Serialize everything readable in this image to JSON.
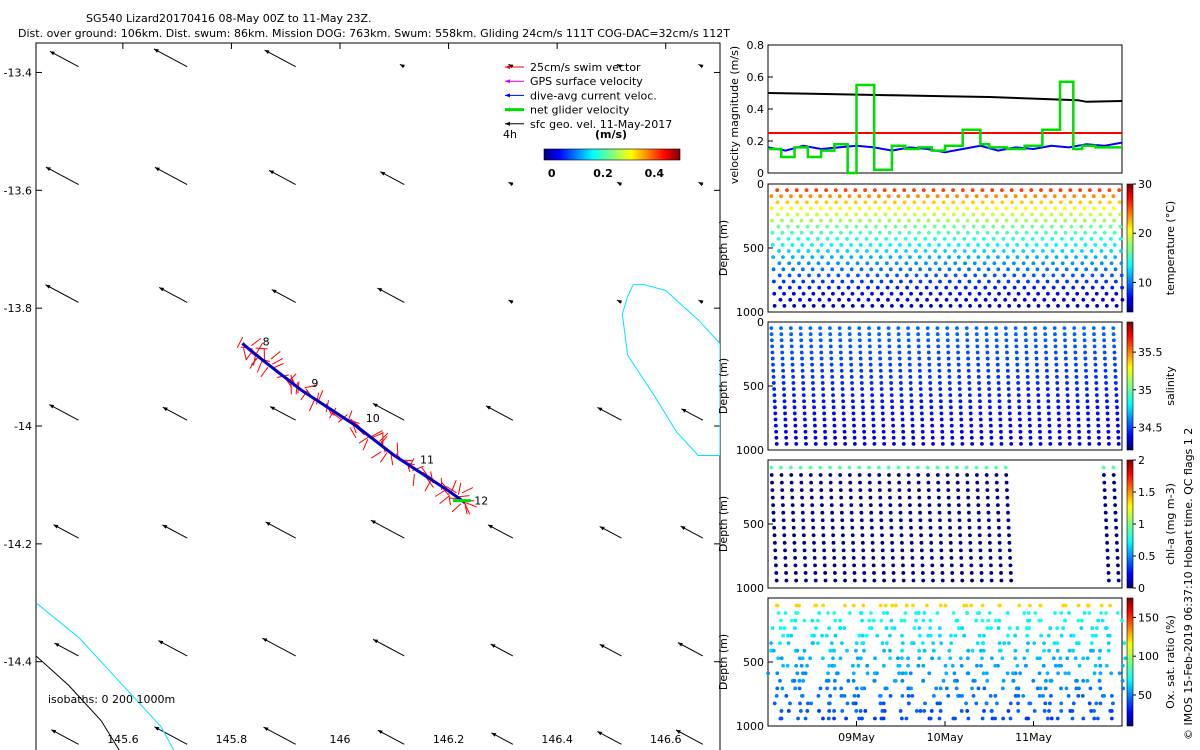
{
  "header": {
    "title": "SG540 Lizard20170416 08-May 00Z to 11-May 23Z.",
    "subtitle": "Dist. over ground: 106km. Dist. swum: 86km. Mission DOG: 763km. Swum: 558km. Gliding 24cm/s 111T COG-DAC=32cm/s 112T"
  },
  "side_note": "© IMOS 15-Feb-2019 06:37:10 Hobart time. QC flags 1  2",
  "colors": {
    "swim": "#ff0000",
    "gps": "#e000e0",
    "dac": "#0000ff",
    "net": "#00dd00",
    "sfc": "#000000",
    "coast": "#00e5ff",
    "isobath": "#000000",
    "track": "#0000cc"
  },
  "chart_data": [
    {
      "type": "scatter",
      "name": "map",
      "title": "SG540 Lizard20170416 08-May 00Z to 11-May 23Z.",
      "xlim": [
        145.44,
        146.7
      ],
      "ylim": [
        -14.56,
        -13.35
      ],
      "xticks": [
        145.6,
        145.8,
        146,
        146.2,
        146.4,
        146.6
      ],
      "xticklabels": [
        "145.6",
        "145.8",
        "146",
        "146.2",
        "146.4",
        "146.6"
      ],
      "yticks": [
        -13.4,
        -13.6,
        -13.8,
        -14,
        -14.2,
        -14.4
      ],
      "yticklabels": [
        "-13.4",
        "-13.6",
        "-13.8",
        "-14",
        "-14.2",
        "-14.4"
      ],
      "legend": [
        {
          "label": "25cm/s swim vector",
          "color": "#ff0000"
        },
        {
          "label": "GPS surface velocity",
          "color": "#e000e0"
        },
        {
          "label": "dive-avg current veloc.",
          "color": "#0000ff"
        },
        {
          "label": "net glider velocity",
          "color": "#00dd00"
        },
        {
          "label": "sfc geo. vel. 11-May-2017",
          "color": "#000000"
        }
      ],
      "legend_extra": "4h",
      "colorbar": {
        "label": "(m/s)",
        "ticks": [
          0,
          0.2,
          0.4
        ],
        "ticklabels": [
          "0",
          "0.2",
          "0.4"
        ],
        "range": [
          -0.03,
          0.5
        ]
      },
      "track": {
        "lon": [
          145.82,
          145.86,
          145.93,
          146.03,
          146.1,
          146.2,
          146.23
        ],
        "lat": [
          -13.86,
          -13.89,
          -13.94,
          -14.0,
          -14.05,
          -14.11,
          -14.13
        ]
      },
      "day_labels": [
        {
          "text": "8",
          "lon": 145.85,
          "lat": -13.86
        },
        {
          "text": "9",
          "lon": 145.94,
          "lat": -13.93
        },
        {
          "text": "10",
          "lon": 146.04,
          "lat": -13.99
        },
        {
          "text": "11",
          "lon": 146.14,
          "lat": -14.06
        },
        {
          "text": "12",
          "lon": 146.24,
          "lat": -14.13
        }
      ],
      "currents_lon": [
        145.5,
        145.7,
        145.9,
        146.1,
        146.3,
        146.5,
        146.65
      ],
      "currents_lat": [
        -13.38,
        -13.58,
        -13.78,
        -13.98,
        -14.18,
        -14.38,
        -14.53
      ],
      "coastline": {
        "lon": [
          146.54,
          146.56,
          146.6,
          146.66,
          146.7,
          146.7,
          146.66,
          146.62,
          146.58,
          146.53,
          146.52,
          146.53,
          146.54
        ],
        "lat": [
          -13.76,
          -13.76,
          -13.77,
          -13.82,
          -13.86,
          -14.05,
          -14.05,
          -14.01,
          -13.95,
          -13.88,
          -13.81,
          -13.78,
          -13.76
        ]
      },
      "isobath_cyan": {
        "lon": [
          145.44,
          145.52,
          145.6,
          145.67,
          145.7
        ],
        "lat": [
          -14.3,
          -14.36,
          -14.44,
          -14.51,
          -14.56
        ]
      },
      "isobath_black": {
        "lon": [
          145.44,
          145.5,
          145.56,
          145.6
        ],
        "lat": [
          -14.39,
          -14.44,
          -14.5,
          -14.56
        ]
      },
      "isobath_label": "isobaths: 0   200  1000m"
    },
    {
      "type": "line",
      "name": "velocity",
      "ylabel": "velocity magnitude (m/s)",
      "xlim": [
        0,
        4
      ],
      "ylim": [
        0,
        0.8
      ],
      "yticks": [
        0,
        0.2,
        0.4,
        0.6,
        0.8
      ],
      "yticklabels": [
        "0",
        "0.2",
        "0.4",
        "0.6",
        "0.8"
      ],
      "series": [
        {
          "name": "sfc geo. vel.",
          "color": "#000000",
          "x": [
            0,
            0.5,
            1,
            1.5,
            2,
            2.5,
            3,
            3.5,
            3.6,
            4
          ],
          "values": [
            0.5,
            0.495,
            0.49,
            0.485,
            0.48,
            0.475,
            0.465,
            0.455,
            0.445,
            0.45
          ]
        },
        {
          "name": "swim",
          "color": "#ff0000",
          "x": [
            0,
            4
          ],
          "values": [
            0.25,
            0.25
          ]
        },
        {
          "name": "dive-avg current",
          "color": "#0000ff",
          "x": [
            0,
            0.2,
            0.4,
            0.6,
            0.8,
            1,
            1.2,
            1.4,
            1.6,
            1.8,
            2,
            2.2,
            2.4,
            2.6,
            2.8,
            3,
            3.2,
            3.4,
            3.6,
            3.8,
            4
          ],
          "values": [
            0.16,
            0.14,
            0.17,
            0.15,
            0.16,
            0.17,
            0.16,
            0.14,
            0.16,
            0.15,
            0.13,
            0.15,
            0.17,
            0.14,
            0.16,
            0.15,
            0.17,
            0.16,
            0.18,
            0.17,
            0.19
          ]
        },
        {
          "name": "net glider",
          "color": "#00dd00",
          "x": [
            0,
            0.15,
            0.15,
            0.3,
            0.3,
            0.45,
            0.45,
            0.6,
            0.6,
            0.75,
            0.75,
            0.9,
            0.9,
            1.0,
            1.0,
            1.2,
            1.2,
            1.4,
            1.4,
            1.55,
            1.55,
            1.7,
            1.7,
            1.85,
            1.85,
            2.0,
            2.0,
            2.2,
            2.2,
            2.4,
            2.4,
            2.5,
            2.5,
            2.7,
            2.7,
            2.9,
            2.9,
            3.1,
            3.1,
            3.3,
            3.3,
            3.45,
            3.45,
            3.55,
            3.55,
            3.7,
            3.7,
            4.0
          ],
          "values": [
            0.15,
            0.15,
            0.1,
            0.1,
            0.16,
            0.16,
            0.1,
            0.1,
            0.14,
            0.14,
            0.18,
            0.18,
            0.0,
            0.0,
            0.55,
            0.55,
            0.02,
            0.02,
            0.17,
            0.17,
            0.15,
            0.15,
            0.16,
            0.16,
            0.14,
            0.14,
            0.17,
            0.17,
            0.27,
            0.27,
            0.18,
            0.18,
            0.16,
            0.16,
            0.15,
            0.15,
            0.17,
            0.17,
            0.27,
            0.27,
            0.57,
            0.57,
            0.15,
            0.15,
            0.17,
            0.17,
            0.16,
            0.16
          ]
        }
      ]
    },
    {
      "type": "scatter",
      "name": "temperature",
      "ylabel": "Depth (m)",
      "yticks": [
        0,
        500,
        1000
      ],
      "yticklabels": [
        "0",
        "500",
        "1000"
      ],
      "ylim": [
        0,
        1000
      ],
      "colorbar": {
        "label": "temperature (°C)",
        "range": [
          4,
          30
        ],
        "ticks": [
          10,
          20,
          30
        ],
        "ticklabels": [
          "10",
          "20",
          "30"
        ]
      },
      "dive_count": 36,
      "points_per_dive": 22,
      "pattern": "temperature",
      "max_depth": 1000,
      "gaps": []
    },
    {
      "type": "scatter",
      "name": "salinity",
      "ylabel": "Depth (m)",
      "yticks": [
        0,
        500,
        1000
      ],
      "yticklabels": [
        "0",
        "500",
        "1000"
      ],
      "ylim": [
        0,
        1000
      ],
      "colorbar": {
        "label": "salinity",
        "range": [
          34.2,
          35.9
        ],
        "ticks": [
          34.5,
          35,
          35.5
        ],
        "ticklabels": [
          "34.5",
          "35",
          "35.5"
        ]
      },
      "dive_count": 36,
      "points_per_dive": 22,
      "pattern": "salinity",
      "max_depth": 1000,
      "gaps": []
    },
    {
      "type": "scatter",
      "name": "chlorophyll",
      "ylabel": "Depth (m)",
      "yticks": [
        500,
        1000
      ],
      "yticklabels": [
        "500",
        "1000"
      ],
      "ylim": [
        0,
        1000
      ],
      "colorbar": {
        "label": "chl-a (mg m-3)",
        "range": [
          0,
          2
        ],
        "ticks": [
          0,
          0.5,
          1,
          1.5,
          2
        ],
        "ticklabels": [
          "0",
          "0.5",
          "1",
          "1.5",
          "2"
        ]
      },
      "dive_count": 36,
      "points_per_dive": 18,
      "pattern": "chl",
      "max_depth": 1000,
      "gaps": [
        [
          25,
          33
        ]
      ]
    },
    {
      "type": "scatter",
      "name": "oxygen",
      "ylabel": "Depth (m)",
      "yticks": [
        500,
        1000
      ],
      "yticklabels": [
        "500",
        "1000"
      ],
      "ylim": [
        0,
        1000
      ],
      "xticks": [
        1,
        2,
        3
      ],
      "xticklabels": [
        "09May",
        "10May",
        "11May"
      ],
      "colorbar": {
        "label": "Ox. sat. ratio (%)",
        "range": [
          10,
          175
        ],
        "ticks": [
          50,
          100,
          150
        ],
        "ticklabels": [
          "50",
          "100",
          "150"
        ]
      },
      "dive_count": 36,
      "points_per_dive": 18,
      "pattern": "oxygen",
      "max_depth": 1000,
      "gaps": []
    }
  ]
}
